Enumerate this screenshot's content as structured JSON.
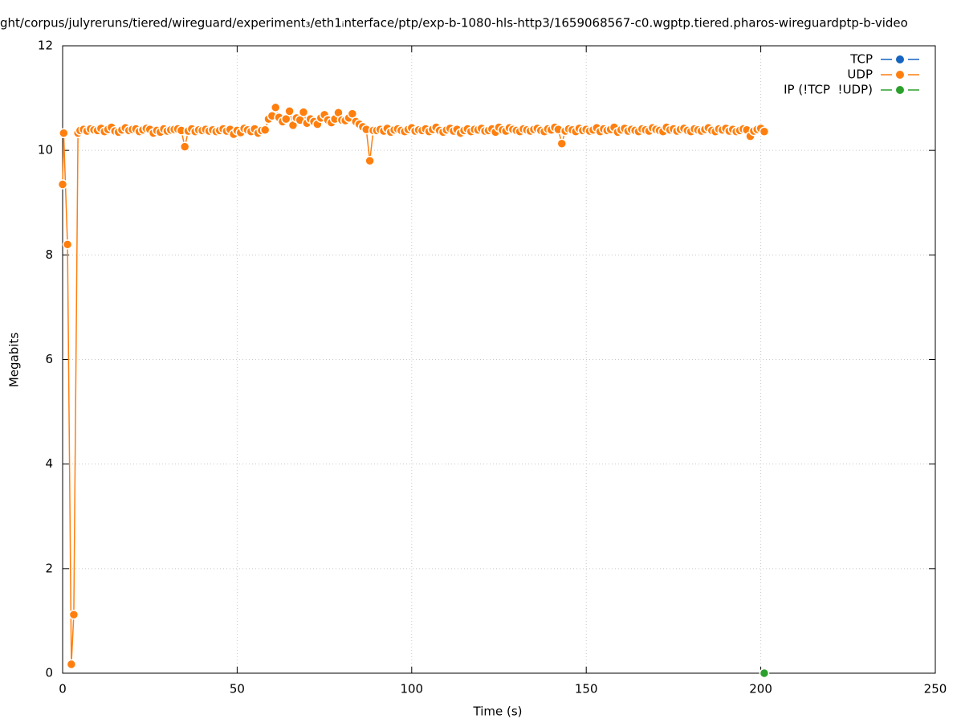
{
  "chart_data": {
    "type": "line",
    "title": "ght/corpus/julyreruns/tiered/wireguard/experiment₃/eth1ᵢnterface/ptp/exp-b-1080-hls-http3/1659068567-c0.wgptp.tiered.pharos-wireguardptp-b-video",
    "xlabel": "Time (s)",
    "ylabel": "Megabits",
    "xlim": [
      0,
      250
    ],
    "xticks": [
      0,
      50,
      100,
      150,
      200,
      250
    ],
    "ylim": [
      0,
      12
    ],
    "yticks": [
      0,
      2,
      4,
      6,
      8,
      10,
      12
    ],
    "grid": true,
    "legend": "top-right",
    "series": [
      {
        "name": "TCP",
        "color": "#1565c0",
        "x": [],
        "values": []
      },
      {
        "name": "UDP",
        "color": "#ff7f0e",
        "x": [
          0,
          0.3,
          1.4,
          2.5,
          3.2,
          4.4,
          5,
          6,
          7,
          8,
          9,
          10,
          11,
          12,
          13,
          14,
          15,
          16,
          17,
          18,
          19,
          20,
          21,
          22,
          23,
          24,
          25,
          26,
          27,
          28,
          29,
          30,
          31,
          32,
          33,
          34,
          35,
          36,
          37,
          38,
          39,
          40,
          41,
          42,
          43,
          44,
          45,
          46,
          47,
          48,
          49,
          50,
          51,
          52,
          53,
          54,
          55,
          56,
          57,
          58,
          59,
          60,
          61,
          62,
          63,
          64,
          65,
          66,
          67,
          68,
          69,
          70,
          71,
          72,
          73,
          74,
          75,
          76,
          77,
          78,
          79,
          80,
          81,
          82,
          83,
          84,
          85,
          86,
          87,
          88,
          89,
          90,
          91,
          92,
          93,
          94,
          95,
          96,
          97,
          98,
          99,
          100,
          101,
          102,
          103,
          104,
          105,
          106,
          107,
          108,
          109,
          110,
          111,
          112,
          113,
          114,
          115,
          116,
          117,
          118,
          119,
          120,
          121,
          122,
          123,
          124,
          125,
          126,
          127,
          128,
          129,
          130,
          131,
          132,
          133,
          134,
          135,
          136,
          137,
          138,
          139,
          140,
          141,
          142,
          143,
          144,
          145,
          146,
          147,
          148,
          149,
          150,
          151,
          152,
          153,
          154,
          155,
          156,
          157,
          158,
          159,
          160,
          161,
          162,
          163,
          164,
          165,
          166,
          167,
          168,
          169,
          170,
          171,
          172,
          173,
          174,
          175,
          176,
          177,
          178,
          179,
          180,
          181,
          182,
          183,
          184,
          185,
          186,
          187,
          188,
          189,
          190,
          191,
          192,
          193,
          194,
          195,
          196,
          197,
          198,
          199,
          200,
          201
        ],
        "values": [
          9.35,
          10.33,
          8.2,
          0.17,
          1.12,
          10.33,
          10.38,
          10.4,
          10.37,
          10.41,
          10.39,
          10.38,
          10.42,
          10.36,
          10.4,
          10.44,
          10.37,
          10.35,
          10.39,
          10.43,
          10.38,
          10.4,
          10.41,
          10.36,
          10.39,
          10.42,
          10.4,
          10.33,
          10.38,
          10.35,
          10.41,
          10.37,
          10.39,
          10.4,
          10.41,
          10.38,
          10.07,
          10.37,
          10.41,
          10.36,
          10.39,
          10.38,
          10.4,
          10.37,
          10.39,
          10.36,
          10.38,
          10.41,
          10.37,
          10.4,
          10.31,
          10.38,
          10.34,
          10.42,
          10.39,
          10.36,
          10.41,
          10.33,
          10.38,
          10.39,
          10.6,
          10.66,
          10.82,
          10.63,
          10.55,
          10.6,
          10.75,
          10.48,
          10.62,
          10.58,
          10.73,
          10.52,
          10.6,
          10.55,
          10.5,
          10.62,
          10.68,
          10.58,
          10.53,
          10.6,
          10.72,
          10.58,
          10.57,
          10.62,
          10.7,
          10.55,
          10.5,
          10.45,
          10.4,
          9.8,
          10.38,
          10.38,
          10.4,
          10.37,
          10.42,
          10.35,
          10.39,
          10.41,
          10.38,
          10.36,
          10.4,
          10.43,
          10.37,
          10.39,
          10.38,
          10.41,
          10.36,
          10.4,
          10.44,
          10.38,
          10.35,
          10.39,
          10.42,
          10.37,
          10.4,
          10.33,
          10.38,
          10.41,
          10.36,
          10.4,
          10.39,
          10.42,
          10.37,
          10.38,
          10.41,
          10.35,
          10.44,
          10.39,
          10.37,
          10.43,
          10.4,
          10.38,
          10.36,
          10.41,
          10.39,
          10.37,
          10.4,
          10.42,
          10.38,
          10.36,
          10.41,
          10.39,
          10.44,
          10.4,
          10.13,
          10.37,
          10.41,
          10.39,
          10.36,
          10.42,
          10.38,
          10.4,
          10.37,
          10.39,
          10.43,
          10.36,
          10.41,
          10.38,
          10.4,
          10.44,
          10.35,
          10.39,
          10.42,
          10.37,
          10.4,
          10.38,
          10.36,
          10.41,
          10.39,
          10.37,
          10.43,
          10.4,
          10.38,
          10.36,
          10.44,
          10.39,
          10.41,
          10.37,
          10.4,
          10.42,
          10.38,
          10.36,
          10.41,
          10.39,
          10.37,
          10.4,
          10.43,
          10.38,
          10.36,
          10.41,
          10.39,
          10.42,
          10.37,
          10.4,
          10.36,
          10.38,
          10.41,
          10.39,
          10.27,
          10.37,
          10.4,
          10.42,
          10.36
        ]
      },
      {
        "name": "IP (!TCP  !UDP)",
        "color": "#2ca02c",
        "x": [
          201
        ],
        "values": [
          0
        ]
      }
    ]
  }
}
